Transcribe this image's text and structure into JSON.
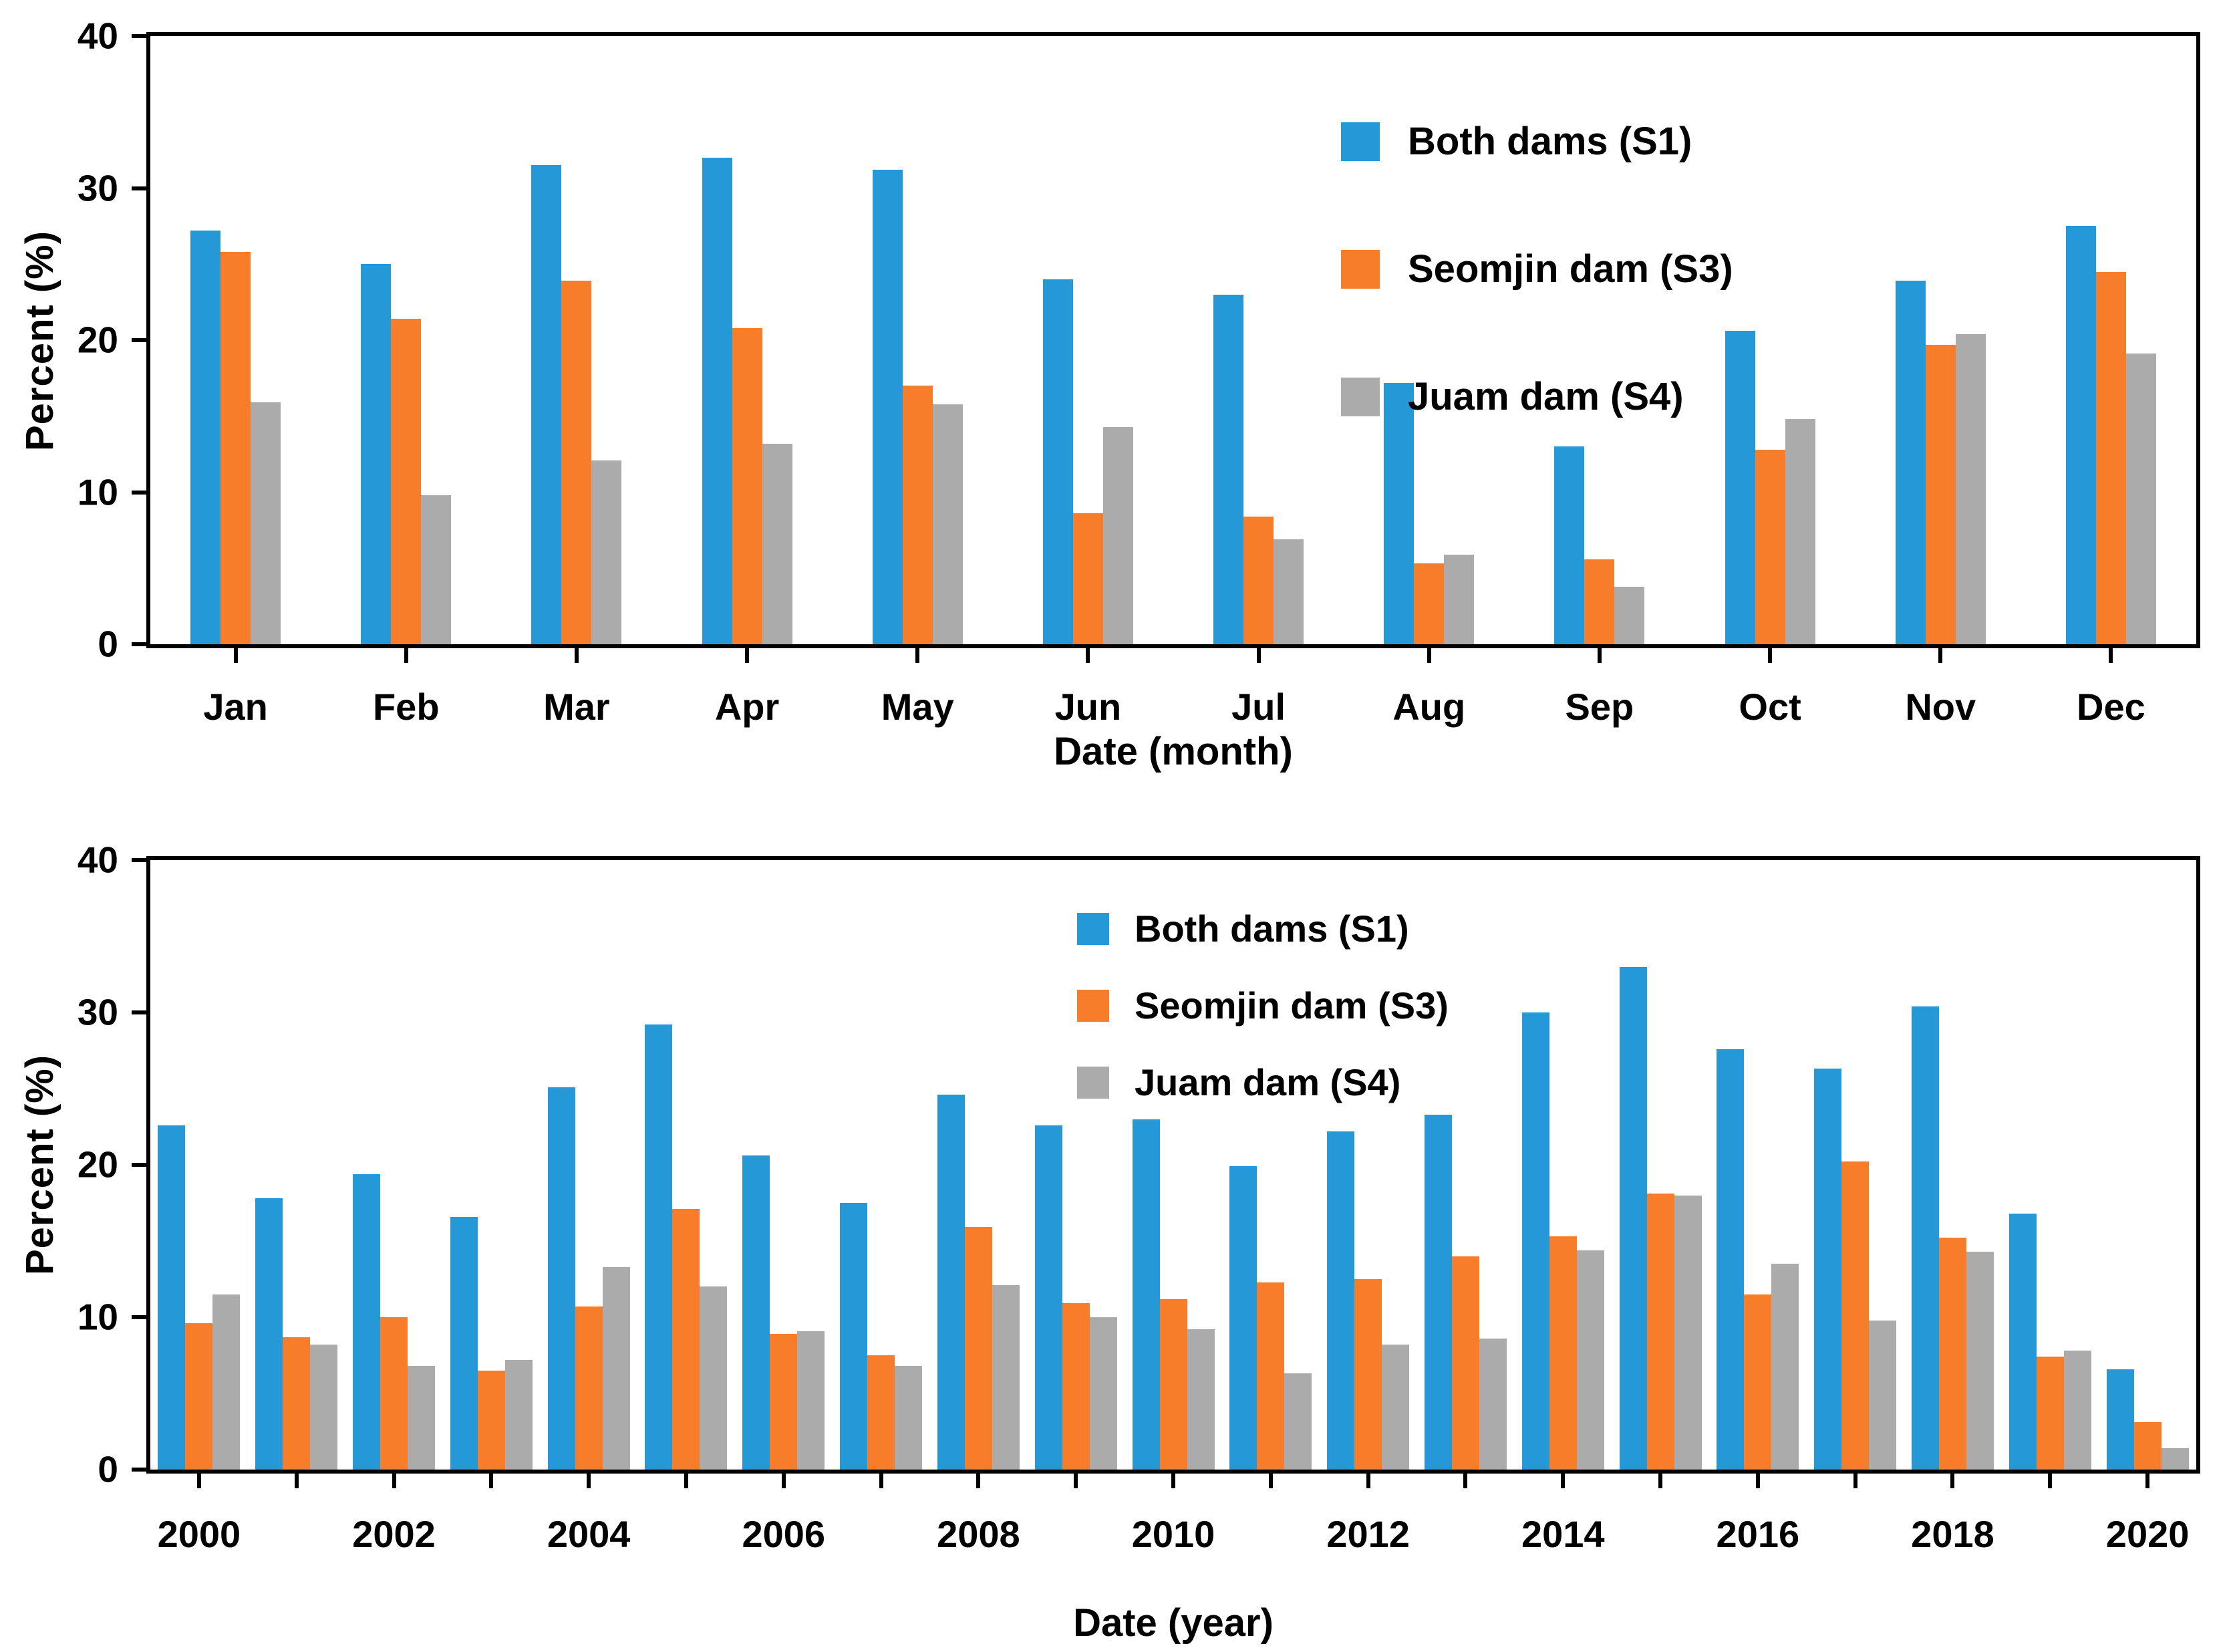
{
  "figure": {
    "description": "Two-panel grouped bar chart figure comparing dam scenarios",
    "legend": [
      "Both dams (S1)",
      "Seomjin dam (S3)",
      "Juam dam (S4)"
    ],
    "colors": {
      "both_dams_s1": "#2598d8",
      "seomjin_dam_s3": "#f87d2a",
      "juam_dam_s4": "#ababab",
      "axis": "#000000",
      "background": "#ffffff"
    }
  },
  "chart_data": [
    {
      "type": "bar",
      "panel": "(a)",
      "xlabel": "Date (month)",
      "ylabel": "Percent (%)",
      "ylim": [
        0,
        40
      ],
      "yticks": [
        0,
        10,
        20,
        30,
        40
      ],
      "grid": false,
      "legend_position": "inside-top-right",
      "categories": [
        "Jan",
        "Feb",
        "Mar",
        "Apr",
        "May",
        "Jun",
        "Jul",
        "Aug",
        "Sep",
        "Oct",
        "Nov",
        "Dec"
      ],
      "x_label_every": 1,
      "series": [
        {
          "name": "Both dams (S1)",
          "color": "#2598d8",
          "values": [
            27.2,
            25.0,
            31.5,
            32.0,
            31.2,
            24.0,
            23.0,
            17.2,
            13.0,
            20.6,
            23.9,
            27.5
          ]
        },
        {
          "name": "Seomjin dam (S3)",
          "color": "#f87d2a",
          "values": [
            25.8,
            21.4,
            23.9,
            20.8,
            17.0,
            8.6,
            8.4,
            5.3,
            5.6,
            12.8,
            19.7,
            24.5
          ]
        },
        {
          "name": "Juam dam (S4)",
          "color": "#ababab",
          "values": [
            15.9,
            9.8,
            12.1,
            13.2,
            15.8,
            14.3,
            6.9,
            5.9,
            3.8,
            14.8,
            20.4,
            19.1
          ]
        }
      ]
    },
    {
      "type": "bar",
      "panel": "(b)",
      "xlabel": "Date (year)",
      "ylabel": "Percent (%)",
      "ylim": [
        0,
        40
      ],
      "yticks": [
        0,
        10,
        20,
        30,
        40
      ],
      "grid": false,
      "legend_position": "inside-top-right",
      "categories": [
        "2000",
        "2001",
        "2002",
        "2003",
        "2004",
        "2005",
        "2006",
        "2007",
        "2008",
        "2009",
        "2010",
        "2011",
        "2012",
        "2013",
        "2014",
        "2015",
        "2016",
        "2017",
        "2018",
        "2019",
        "2020"
      ],
      "x_label_every": 2,
      "series": [
        {
          "name": "Both dams (S1)",
          "color": "#2598d8",
          "values": [
            22.6,
            17.8,
            19.4,
            16.6,
            25.1,
            29.2,
            20.6,
            17.5,
            24.6,
            22.6,
            23.0,
            19.9,
            22.2,
            23.3,
            30.0,
            33.0,
            27.6,
            26.3,
            30.4,
            16.8,
            6.6
          ]
        },
        {
          "name": "Seomjin dam (S3)",
          "color": "#f87d2a",
          "values": [
            9.6,
            8.7,
            10.0,
            6.5,
            10.7,
            17.1,
            8.9,
            7.5,
            15.9,
            10.9,
            11.2,
            12.3,
            12.5,
            14.0,
            15.3,
            18.1,
            11.5,
            20.2,
            15.2,
            7.4,
            3.1
          ]
        },
        {
          "name": "Juam dam (S4)",
          "color": "#ababab",
          "values": [
            11.5,
            8.2,
            6.8,
            7.2,
            13.3,
            12.0,
            9.1,
            6.8,
            12.1,
            10.0,
            9.2,
            6.3,
            8.2,
            8.6,
            14.4,
            18.0,
            13.5,
            9.8,
            14.3,
            7.8,
            1.4
          ]
        }
      ]
    }
  ]
}
